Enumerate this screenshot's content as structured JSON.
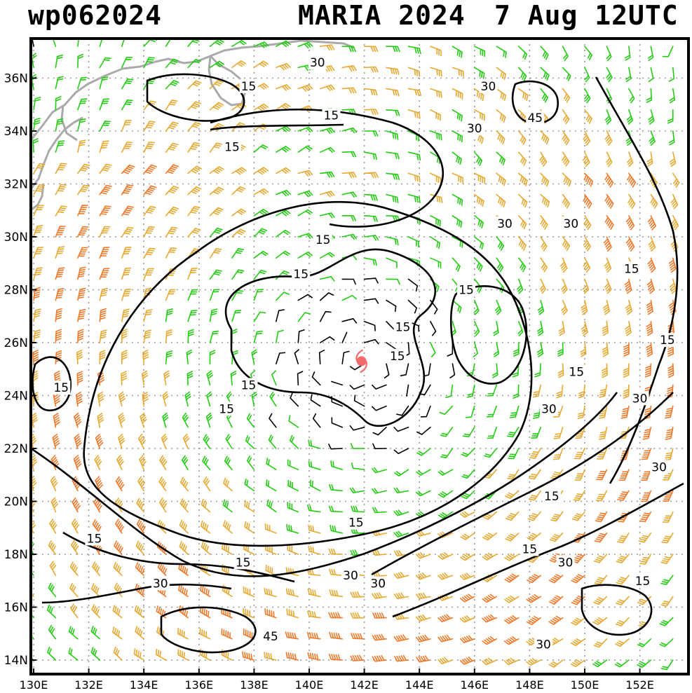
{
  "header": {
    "storm_id": "wp062024",
    "storm_name_year": "MARIA 2024",
    "valid_time": "7 Aug 12UTC"
  },
  "map": {
    "latitude_labels": [
      "36N",
      "34N",
      "32N",
      "30N",
      "28N",
      "26N",
      "24N",
      "22N",
      "20N",
      "18N",
      "16N",
      "14N"
    ],
    "longitude_labels": [
      "130E",
      "132E",
      "134E",
      "136E",
      "138E",
      "140E",
      "142E",
      "144E",
      "146E",
      "148E",
      "150E",
      "152E"
    ],
    "storm_center": {
      "lat": 25.3,
      "lon": 141.9
    },
    "storm_center_color": "#f26b6b",
    "contour_color": "#000000",
    "coastline_color": "#aaaaaa",
    "barb_colors": {
      "calm": "#000000",
      "moderate": "#22cc11",
      "strong": "#e8a830",
      "very_strong": "#f07828"
    },
    "contour_labels": [
      {
        "text": "30",
        "lat": 36.6,
        "lon": 140.3
      },
      {
        "text": "15",
        "lat": 35.7,
        "lon": 137.8
      },
      {
        "text": "30",
        "lat": 35.7,
        "lon": 146.5
      },
      {
        "text": "15",
        "lat": 34.6,
        "lon": 140.8
      },
      {
        "text": "45",
        "lat": 34.5,
        "lon": 148.2
      },
      {
        "text": "30",
        "lat": 34.1,
        "lon": 146.0
      },
      {
        "text": "15",
        "lat": 33.4,
        "lon": 137.2
      },
      {
        "text": "30",
        "lat": 30.5,
        "lon": 147.1
      },
      {
        "text": "30",
        "lat": 30.5,
        "lon": 149.5
      },
      {
        "text": "15",
        "lat": 29.9,
        "lon": 140.5
      },
      {
        "text": "15",
        "lat": 28.6,
        "lon": 139.7
      },
      {
        "text": "15",
        "lat": 28.0,
        "lon": 145.7
      },
      {
        "text": "15",
        "lat": 28.8,
        "lon": 151.7
      },
      {
        "text": "15",
        "lat": 26.6,
        "lon": 143.4
      },
      {
        "text": "15",
        "lat": 25.5,
        "lon": 143.2
      },
      {
        "text": "15",
        "lat": 26.1,
        "lon": 153.0
      },
      {
        "text": "15",
        "lat": 24.9,
        "lon": 149.7
      },
      {
        "text": "15",
        "lat": 24.4,
        "lon": 137.8
      },
      {
        "text": "15",
        "lat": 24.3,
        "lon": 131.0
      },
      {
        "text": "30",
        "lat": 23.9,
        "lon": 152.0
      },
      {
        "text": "15",
        "lat": 23.5,
        "lon": 137.0
      },
      {
        "text": "30",
        "lat": 23.5,
        "lon": 148.7
      },
      {
        "text": "30",
        "lat": 21.3,
        "lon": 152.7
      },
      {
        "text": "15",
        "lat": 20.2,
        "lon": 148.8
      },
      {
        "text": "15",
        "lat": 19.2,
        "lon": 141.7
      },
      {
        "text": "15",
        "lat": 18.6,
        "lon": 132.2
      },
      {
        "text": "15",
        "lat": 18.2,
        "lon": 148.0
      },
      {
        "text": "15",
        "lat": 17.7,
        "lon": 137.6
      },
      {
        "text": "30",
        "lat": 17.7,
        "lon": 149.3
      },
      {
        "text": "30",
        "lat": 17.2,
        "lon": 141.5
      },
      {
        "text": "30",
        "lat": 16.9,
        "lon": 142.5
      },
      {
        "text": "30",
        "lat": 16.9,
        "lon": 134.6
      },
      {
        "text": "15",
        "lat": 17.0,
        "lon": 152.1
      },
      {
        "text": "45",
        "lat": 14.9,
        "lon": 138.6
      },
      {
        "text": "30",
        "lat": 14.6,
        "lon": 148.5
      }
    ]
  }
}
